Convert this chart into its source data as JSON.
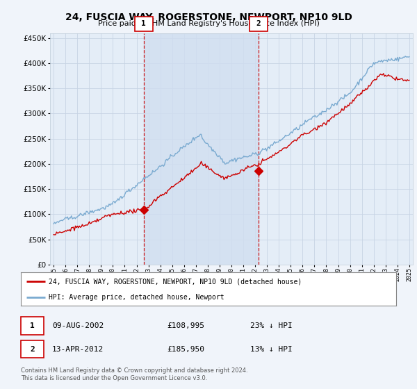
{
  "title": "24, FUSCIA WAY, ROGERSTONE, NEWPORT, NP10 9LD",
  "subtitle": "Price paid vs. HM Land Registry's House Price Index (HPI)",
  "legend_label_red": "24, FUSCIA WAY, ROGERSTONE, NEWPORT, NP10 9LD (detached house)",
  "legend_label_blue": "HPI: Average price, detached house, Newport",
  "transaction1_date": "09-AUG-2002",
  "transaction1_price": "£108,995",
  "transaction1_hpi": "23% ↓ HPI",
  "transaction2_date": "13-APR-2012",
  "transaction2_price": "£185,950",
  "transaction2_hpi": "13% ↓ HPI",
  "footnote": "Contains HM Land Registry data © Crown copyright and database right 2024.\nThis data is licensed under the Open Government Licence v3.0.",
  "background_color": "#f0f4fa",
  "plot_bg_color": "#e4edf7",
  "shade_color": "#d0def0",
  "red_color": "#cc0000",
  "blue_color": "#7aaad0",
  "marker1_x": 2002.6,
  "marker1_y": 108995,
  "marker2_x": 2012.28,
  "marker2_y": 185950,
  "ylim": [
    0,
    460000
  ],
  "xlim_start": 1994.7,
  "xlim_end": 2025.3,
  "grid_color": "#c8d4e4",
  "spine_color": "#c0ccd8"
}
